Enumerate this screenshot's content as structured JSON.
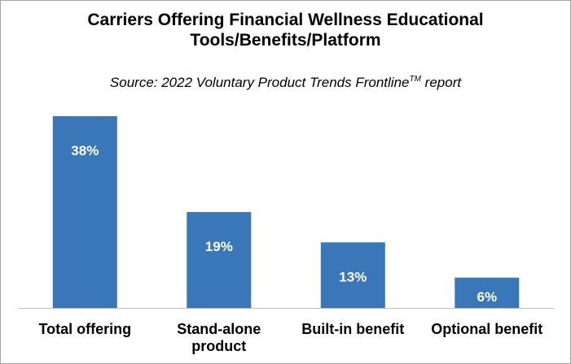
{
  "chart_data": {
    "type": "bar",
    "title_line1": "Carriers Offering Financial Wellness Educational",
    "title_line2": "Tools/Benefits/Platform",
    "subtitle_main": "Source: 2022 Voluntary Product Trends Frontline",
    "subtitle_sup": "TM",
    "subtitle_end": " report",
    "categories": [
      "Total offering",
      "Stand-alone product",
      "Built-in benefit",
      "Optional benefit"
    ],
    "category_lines": [
      [
        "Total offering"
      ],
      [
        "Stand-alone",
        "product"
      ],
      [
        "Built-in benefit"
      ],
      [
        "Optional benefit"
      ]
    ],
    "values": [
      38,
      19,
      13,
      6
    ],
    "value_labels": [
      "38%",
      "19%",
      "13%",
      "6%"
    ],
    "ylim": [
      0,
      40
    ],
    "xlabel": "",
    "ylabel": "",
    "grid": false,
    "legend": "none",
    "bar_color": "#3a77b8"
  }
}
